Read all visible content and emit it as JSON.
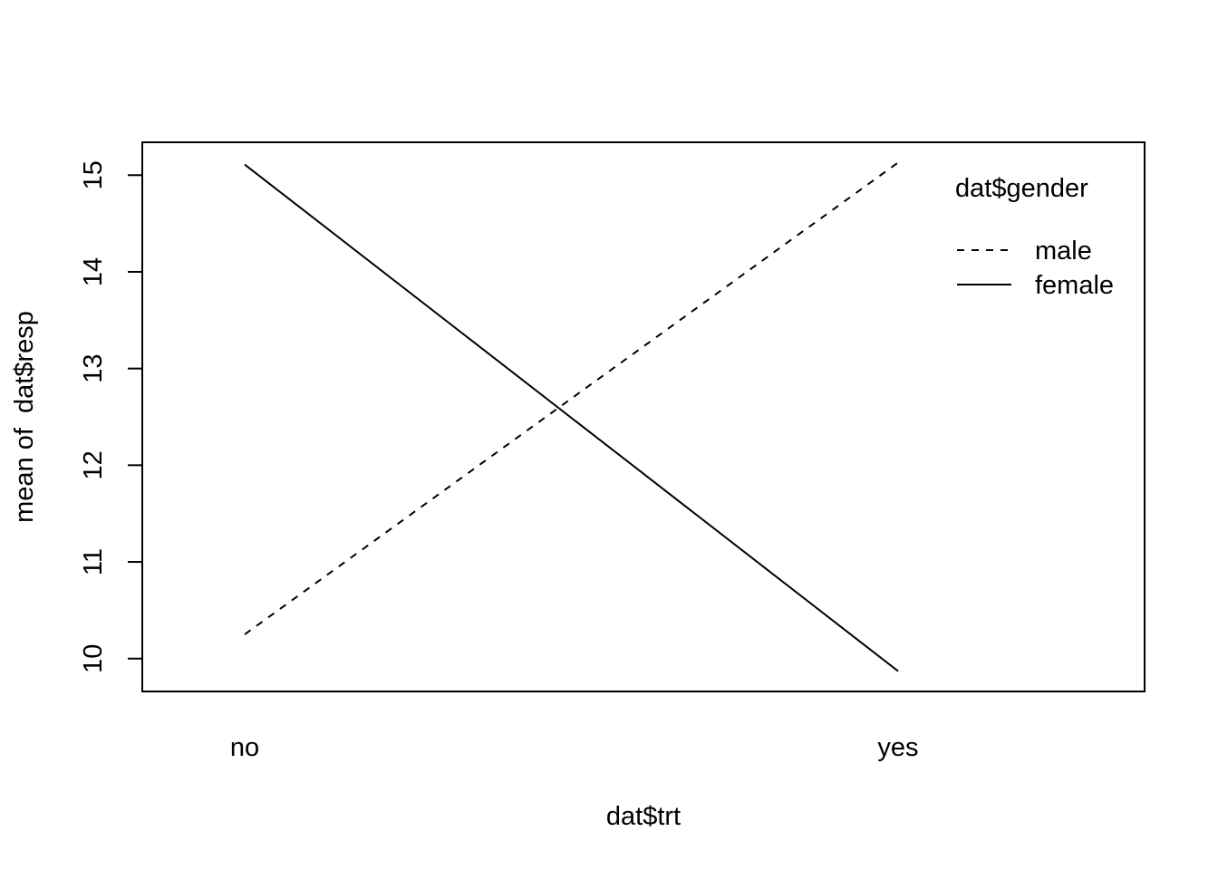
{
  "chart_data": {
    "type": "line",
    "title": "",
    "xlabel": "dat$trt",
    "ylabel": "mean of  dat$resp",
    "categories": [
      "no",
      "yes"
    ],
    "ylim": [
      9.66,
      15.34
    ],
    "y_ticks": [
      "10",
      "11",
      "12",
      "13",
      "14",
      "15"
    ],
    "grid": false,
    "legend": {
      "title": "dat$gender",
      "position": "top-right",
      "entries": [
        "male",
        "female"
      ]
    },
    "series": [
      {
        "name": "male",
        "line_style": "dashed",
        "color": "#000000",
        "values": [
          10.25,
          15.13
        ]
      },
      {
        "name": "female",
        "line_style": "solid",
        "color": "#000000",
        "values": [
          15.11,
          9.87
        ]
      }
    ]
  }
}
